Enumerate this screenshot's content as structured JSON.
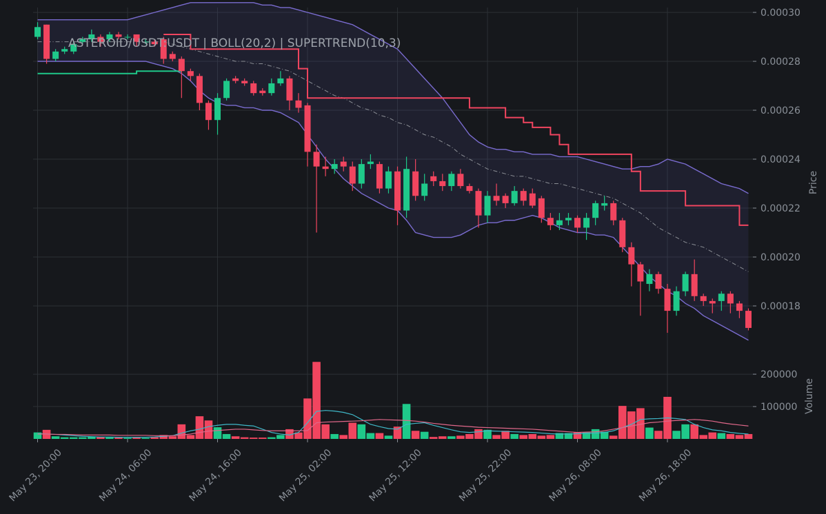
{
  "chart_data": {
    "type": "candlestick",
    "title": "ASTEROID/USDT:USDT | BOLL(20,2) | SUPERTREND(10,3)",
    "ylabel": "Price",
    "x": [
      "May 23, 20:00",
      "May 23, 21:00",
      "May 23, 22:00",
      "May 23, 23:00",
      "May 24, 00:00",
      "May 24, 01:00",
      "May 24, 02:00",
      "May 24, 03:00",
      "May 24, 04:00",
      "May 24, 05:00",
      "May 24, 06:00",
      "May 24, 07:00",
      "May 24, 08:00",
      "May 24, 09:00",
      "May 24, 10:00",
      "May 24, 11:00",
      "May 24, 12:00",
      "May 24, 13:00",
      "May 24, 14:00",
      "May 24, 15:00",
      "May 24, 16:00",
      "May 24, 17:00",
      "May 24, 18:00",
      "May 24, 19:00",
      "May 24, 20:00",
      "May 24, 21:00",
      "May 24, 22:00",
      "May 24, 23:00",
      "May 25, 00:00",
      "May 25, 01:00",
      "May 25, 02:00",
      "May 25, 03:00",
      "May 25, 04:00",
      "May 25, 05:00",
      "May 25, 06:00",
      "May 25, 07:00",
      "May 25, 08:00",
      "May 25, 09:00",
      "May 25, 10:00",
      "May 25, 11:00",
      "May 25, 12:00",
      "May 25, 13:00",
      "May 25, 14:00",
      "May 25, 15:00",
      "May 25, 16:00",
      "May 25, 17:00",
      "May 25, 18:00",
      "May 25, 19:00",
      "May 25, 20:00",
      "May 25, 21:00",
      "May 25, 22:00",
      "May 25, 23:00",
      "May 26, 00:00",
      "May 26, 01:00",
      "May 26, 02:00",
      "May 26, 03:00",
      "May 26, 04:00",
      "May 26, 05:00",
      "May 26, 06:00",
      "May 26, 07:00",
      "May 26, 08:00",
      "May 26, 09:00",
      "May 26, 10:00",
      "May 26, 11:00",
      "May 26, 12:00",
      "May 26, 13:00",
      "May 26, 14:00",
      "May 26, 15:00",
      "May 26, 16:00",
      "May 26, 17:00",
      "May 26, 18:00",
      "May 26, 19:00",
      "May 26, 20:00",
      "May 26, 21:00",
      "May 26, 22:00",
      "May 26, 23:00",
      "May 27, 00:00",
      "May 27, 01:00",
      "May 27, 02:00",
      "May 27, 03:00"
    ],
    "xticks": [
      "May 23, 20:00",
      "May 24, 06:00",
      "May 24, 16:00",
      "May 25, 02:00",
      "May 25, 12:00",
      "May 25, 22:00",
      "May 26, 08:00",
      "May 26, 18:00"
    ],
    "ylim": [
      0.00016,
      0.000302
    ],
    "yticks": [
      0.00018,
      {
        "value": 0.0002,
        "label": "0.00020"
      },
      0.00022,
      0.00024,
      0.00026,
      0.00028,
      {
        "value": 0.0003,
        "label": "0.00030"
      }
    ],
    "grid": true,
    "up_color": "#1fc98a",
    "down_color": "#f1455f",
    "open": [
      0.00029,
      0.000295,
      0.000281,
      0.000284,
      0.000284,
      0.000288,
      0.000289,
      0.00029,
      0.000289,
      0.000291,
      0.00029,
      0.000291,
      0.000288,
      0.000288,
      0.000289,
      0.000283,
      0.000281,
      0.000276,
      0.000274,
      0.000263,
      0.000256,
      0.000265,
      0.000273,
      0.000272,
      0.000271,
      0.000268,
      0.000267,
      0.000271,
      0.000273,
      0.000264,
      0.000262,
      0.000243,
      0.000237,
      0.000236,
      0.000239,
      0.000237,
      0.00023,
      0.000238,
      0.000238,
      0.000228,
      0.000235,
      0.000219,
      0.000235,
      0.000225,
      0.000233,
      0.000231,
      0.000229,
      0.000234,
      0.000229,
      0.000227,
      0.000217,
      0.000225,
      0.000225,
      0.000222,
      0.000227,
      0.000226,
      0.000224,
      0.000216,
      0.000213,
      0.000215,
      0.000216,
      0.000212,
      0.000216,
      0.000221,
      0.000222,
      0.000215,
      0.000204,
      0.000197,
      0.000189,
      0.000193,
      0.000187,
      0.000178,
      0.000186,
      0.000193,
      0.000184,
      0.000182,
      0.000182,
      0.000185,
      0.000181,
      0.000178
    ],
    "high": [
      0.000296,
      0.000295,
      0.000285,
      0.000286,
      0.000288,
      0.00029,
      0.000293,
      0.000291,
      0.000292,
      0.000292,
      0.000291,
      0.000291,
      0.000289,
      0.000289,
      0.00029,
      0.000284,
      0.000282,
      0.000277,
      0.000275,
      0.000264,
      0.000267,
      0.000273,
      0.000274,
      0.000273,
      0.000272,
      0.000269,
      0.000273,
      0.000276,
      0.000274,
      0.000267,
      0.000263,
      0.000246,
      0.000241,
      0.00024,
      0.000241,
      0.000239,
      0.00024,
      0.000242,
      0.000239,
      0.000237,
      0.000237,
      0.000241,
      0.00024,
      0.000234,
      0.000235,
      0.000234,
      0.000235,
      0.000236,
      0.00023,
      0.000228,
      0.000227,
      0.00023,
      0.000226,
      0.000229,
      0.000228,
      0.000228,
      0.000225,
      0.000218,
      0.000218,
      0.000218,
      0.000217,
      0.000218,
      0.000223,
      0.000225,
      0.000223,
      0.000216,
      0.000206,
      0.000198,
      0.000195,
      0.000194,
      0.000189,
      0.000188,
      0.000194,
      0.000199,
      0.000185,
      0.000183,
      0.000186,
      0.000186,
      0.000182,
      0.000179
    ],
    "low": [
      0.000289,
      0.000279,
      0.00028,
      0.000283,
      0.000283,
      0.000287,
      0.000288,
      0.000286,
      0.000288,
      0.000289,
      0.000289,
      0.000286,
      0.000287,
      0.000286,
      0.000279,
      0.00028,
      0.000265,
      0.000272,
      0.00026,
      0.000252,
      0.00025,
      0.000264,
      0.000271,
      0.00027,
      0.000266,
      0.000266,
      0.000266,
      0.00027,
      0.00026,
      0.000259,
      0.000237,
      0.00021,
      0.000233,
      0.000234,
      0.000235,
      0.000227,
      0.000228,
      0.000236,
      0.000226,
      0.000226,
      0.000213,
      0.000216,
      0.000223,
      0.000223,
      0.000229,
      0.000227,
      0.000227,
      0.000228,
      0.000226,
      0.000212,
      0.000214,
      0.000221,
      0.00022,
      0.000221,
      0.000221,
      0.00022,
      0.000214,
      0.000211,
      0.000211,
      0.000213,
      0.00021,
      0.000207,
      0.000213,
      0.000219,
      0.000213,
      0.000202,
      0.000188,
      0.000176,
      0.000186,
      0.000185,
      0.000169,
      0.000176,
      0.000184,
      0.000182,
      0.00018,
      0.000177,
      0.000178,
      0.000177,
      0.000175,
      0.00017
    ],
    "close": [
      0.000294,
      0.000281,
      0.000284,
      0.000285,
      0.000287,
      0.000289,
      0.000291,
      0.000288,
      0.000291,
      0.00029,
      0.00029,
      0.000288,
      0.000288,
      0.000287,
      0.000281,
      0.000281,
      0.000276,
      0.000274,
      0.000263,
      0.000256,
      0.000265,
      0.000272,
      0.000272,
      0.000271,
      0.000267,
      0.000267,
      0.000271,
      0.000273,
      0.000264,
      0.000261,
      0.000243,
      0.000237,
      0.000236,
      0.000238,
      0.000237,
      0.00023,
      0.000238,
      0.000239,
      0.000228,
      0.000235,
      0.000219,
      0.000236,
      0.000225,
      0.00023,
      0.000231,
      0.000229,
      0.000234,
      0.000229,
      0.000227,
      0.000217,
      0.000225,
      0.000223,
      0.000222,
      0.000227,
      0.000223,
      0.000221,
      0.000216,
      0.000213,
      0.000215,
      0.000216,
      0.000212,
      0.000216,
      0.000222,
      0.000222,
      0.000215,
      0.000204,
      0.000197,
      0.00019,
      0.000193,
      0.000187,
      0.000178,
      0.000186,
      0.000193,
      0.000184,
      0.000182,
      0.000181,
      0.000185,
      0.000181,
      0.000178,
      0.000171
    ],
    "bands": {
      "line_color": "#7a6cd0",
      "mid_color": "#8c8f96",
      "fill_color": "#5a5ab4",
      "upper": [
        0.000297,
        0.000297,
        0.000297,
        0.000297,
        0.000297,
        0.000297,
        0.000297,
        0.000297,
        0.000297,
        0.000297,
        0.000297,
        0.000298,
        0.000299,
        0.0003,
        0.000301,
        0.000302,
        0.000303,
        0.000304,
        0.000304,
        0.000304,
        0.000304,
        0.000304,
        0.000304,
        0.000304,
        0.000304,
        0.000303,
        0.000303,
        0.000302,
        0.000302,
        0.000301,
        0.0003,
        0.000299,
        0.000298,
        0.000297,
        0.000296,
        0.000295,
        0.000293,
        0.000291,
        0.000289,
        0.000287,
        0.000285,
        0.000281,
        0.000277,
        0.000273,
        0.000269,
        0.000265,
        0.00026,
        0.000255,
        0.00025,
        0.000247,
        0.000245,
        0.000244,
        0.000244,
        0.000243,
        0.000243,
        0.000242,
        0.000242,
        0.000242,
        0.000241,
        0.000241,
        0.000241,
        0.00024,
        0.000239,
        0.000238,
        0.000237,
        0.000236,
        0.000236,
        0.000237,
        0.000237,
        0.000238,
        0.00024,
        0.000239,
        0.000238,
        0.000236,
        0.000234,
        0.000232,
        0.00023,
        0.000229,
        0.000228,
        0.000226
      ],
      "middle": [
        0.000288,
        0.000288,
        0.000288,
        0.000288,
        0.000288,
        0.000288,
        0.000288,
        0.000288,
        0.000288,
        0.000288,
        0.000288,
        0.000288,
        0.000288,
        0.000288,
        0.000288,
        0.000287,
        0.000286,
        0.000285,
        0.000284,
        0.000283,
        0.000282,
        0.000281,
        0.00028,
        0.00028,
        0.000279,
        0.000279,
        0.000278,
        0.000277,
        0.000276,
        0.000274,
        0.000272,
        0.00027,
        0.000268,
        0.000266,
        0.000265,
        0.000263,
        0.000261,
        0.00026,
        0.000258,
        0.000257,
        0.000255,
        0.000254,
        0.000252,
        0.00025,
        0.000249,
        0.000247,
        0.000245,
        0.000242,
        0.00024,
        0.000238,
        0.000236,
        0.000235,
        0.000234,
        0.000233,
        0.000233,
        0.000232,
        0.000231,
        0.00023,
        0.00023,
        0.000229,
        0.000228,
        0.000227,
        0.000226,
        0.000225,
        0.000224,
        0.000222,
        0.00022,
        0.000218,
        0.000215,
        0.000212,
        0.00021,
        0.000208,
        0.000206,
        0.000205,
        0.000204,
        0.000202,
        0.0002,
        0.000198,
        0.000196,
        0.000194
      ],
      "lower": [
        0.00028,
        0.00028,
        0.00028,
        0.00028,
        0.00028,
        0.00028,
        0.00028,
        0.00028,
        0.00028,
        0.00028,
        0.00028,
        0.00028,
        0.00028,
        0.000279,
        0.000278,
        0.000277,
        0.000275,
        0.000272,
        0.000268,
        0.000265,
        0.000263,
        0.000262,
        0.000262,
        0.000261,
        0.000261,
        0.00026,
        0.00026,
        0.000259,
        0.000257,
        0.000255,
        0.00025,
        0.000245,
        0.00024,
        0.000236,
        0.000232,
        0.000229,
        0.000226,
        0.000224,
        0.000222,
        0.00022,
        0.000219,
        0.000215,
        0.00021,
        0.000209,
        0.000208,
        0.000208,
        0.000208,
        0.000209,
        0.000211,
        0.000213,
        0.000214,
        0.000214,
        0.000215,
        0.000215,
        0.000216,
        0.000217,
        0.000216,
        0.000214,
        0.000212,
        0.000211,
        0.00021,
        0.00021,
        0.000209,
        0.000209,
        0.000208,
        0.000204,
        0.0002,
        0.000196,
        0.000192,
        0.000189,
        0.000186,
        0.000184,
        0.000181,
        0.000179,
        0.000176,
        0.000174,
        0.000172,
        0.00017,
        0.000168,
        0.000166
      ]
    },
    "supertrend": {
      "up_color": "#1fc98a",
      "down_color": "#f1455f",
      "up": [
        0.000275,
        0.000275,
        0.000275,
        0.000275,
        0.000275,
        0.000275,
        0.000275,
        0.000275,
        0.000275,
        0.000275,
        0.000275,
        0.000276,
        0.000276,
        0.000276,
        0.000276,
        0.000276,
        0.000276,
        null,
        null,
        null,
        null,
        null,
        null,
        null,
        null,
        null,
        null,
        null,
        null,
        null,
        null,
        null,
        null,
        null,
        null,
        null,
        null,
        null,
        null,
        null,
        null,
        null,
        null,
        null,
        null,
        null,
        null,
        null,
        null,
        null,
        null,
        null,
        null,
        null,
        null,
        null,
        null,
        null,
        null,
        null,
        null,
        null,
        null,
        null,
        null,
        null,
        null,
        null,
        null,
        null,
        null,
        null,
        null,
        null,
        null,
        null,
        null,
        null,
        null,
        null
      ],
      "down": [
        null,
        null,
        null,
        null,
        null,
        null,
        null,
        null,
        null,
        null,
        null,
        null,
        null,
        null,
        0.000291,
        0.000291,
        0.000291,
        0.000285,
        0.000285,
        0.000285,
        0.000285,
        0.000285,
        0.000285,
        0.000285,
        0.000285,
        0.000285,
        0.000285,
        0.000285,
        0.000285,
        0.000277,
        0.000265,
        0.000265,
        0.000265,
        0.000265,
        0.000265,
        0.000265,
        0.000265,
        0.000265,
        0.000265,
        0.000265,
        0.000265,
        0.000265,
        0.000265,
        0.000265,
        0.000265,
        0.000265,
        0.000265,
        0.000265,
        0.000261,
        0.000261,
        0.000261,
        0.000261,
        0.000257,
        0.000257,
        0.000255,
        0.000253,
        0.000253,
        0.00025,
        0.000246,
        0.000242,
        0.000242,
        0.000242,
        0.000242,
        0.000242,
        0.000242,
        0.000242,
        0.000235,
        0.000227,
        0.000227,
        0.000227,
        0.000227,
        0.000227,
        0.000221,
        0.000221,
        0.000221,
        0.000221,
        0.000221,
        0.000221,
        0.000213,
        0.000213
      ]
    },
    "volume": {
      "ylabel": "Volume",
      "ylim": [
        0,
        230000
      ],
      "yticks": [
        100000,
        200000
      ],
      "values": [
        20000,
        28000,
        8000,
        5000,
        5000,
        5000,
        7000,
        6000,
        5000,
        4000,
        3000,
        4000,
        3000,
        5000,
        12000,
        8000,
        45000,
        12000,
        70000,
        57000,
        36000,
        15000,
        8000,
        5000,
        4000,
        4000,
        5000,
        12000,
        30000,
        20000,
        125000,
        238000,
        45000,
        15000,
        12000,
        50000,
        45000,
        18000,
        18000,
        10000,
        38000,
        108000,
        25000,
        22000,
        6000,
        8000,
        8000,
        10000,
        15000,
        30000,
        28000,
        12000,
        25000,
        15000,
        12000,
        15000,
        10000,
        12000,
        18000,
        18000,
        20000,
        20000,
        30000,
        22000,
        10000,
        102000,
        85000,
        95000,
        35000,
        25000,
        130000,
        25000,
        45000,
        45000,
        12000,
        20000,
        18000,
        15000,
        12000,
        15000
      ],
      "ma_fast": {
        "color": "#3fb8c8",
        "values": [
          16000,
          15000,
          14000,
          12000,
          10000,
          8000,
          7000,
          6000,
          6000,
          5000,
          5000,
          5000,
          5000,
          6000,
          8000,
          10000,
          18000,
          25000,
          30000,
          38000,
          42000,
          45000,
          45000,
          42000,
          40000,
          30000,
          20000,
          15000,
          12000,
          20000,
          50000,
          85000,
          88000,
          86000,
          82000,
          75000,
          60000,
          45000,
          38000,
          32000,
          30000,
          45000,
          48000,
          50000,
          42000,
          35000,
          28000,
          22000,
          20000,
          22000,
          25000,
          24000,
          23000,
          22000,
          21000,
          20000,
          18000,
          16000,
          15000,
          15000,
          16000,
          17000,
          18000,
          20000,
          25000,
          35000,
          45000,
          60000,
          62000,
          63000,
          65000,
          63000,
          60000,
          45000,
          35000,
          28000,
          25000,
          20000,
          17000,
          15000
        ]
      },
      "ma_slow": {
        "color": "#e0688a",
        "values": [
          15000,
          15000,
          14000,
          14000,
          13000,
          12000,
          12000,
          12000,
          12000,
          11000,
          11000,
          11000,
          11000,
          10000,
          10000,
          10000,
          12000,
          15000,
          20000,
          24000,
          26000,
          28000,
          30000,
          30000,
          28000,
          26000,
          25000,
          25000,
          25000,
          25000,
          26000,
          50000,
          52000,
          53000,
          54000,
          55000,
          56000,
          58000,
          60000,
          59000,
          58000,
          57000,
          55000,
          52000,
          48000,
          45000,
          42000,
          40000,
          38000,
          36000,
          35000,
          34000,
          33000,
          32000,
          31000,
          30000,
          28000,
          26000,
          24000,
          22000,
          20000,
          21000,
          22000,
          25000,
          30000,
          35000,
          40000,
          45000,
          50000,
          52000,
          55000,
          57000,
          58000,
          60000,
          58000,
          55000,
          50000,
          46000,
          43000,
          40000
        ]
      }
    }
  }
}
